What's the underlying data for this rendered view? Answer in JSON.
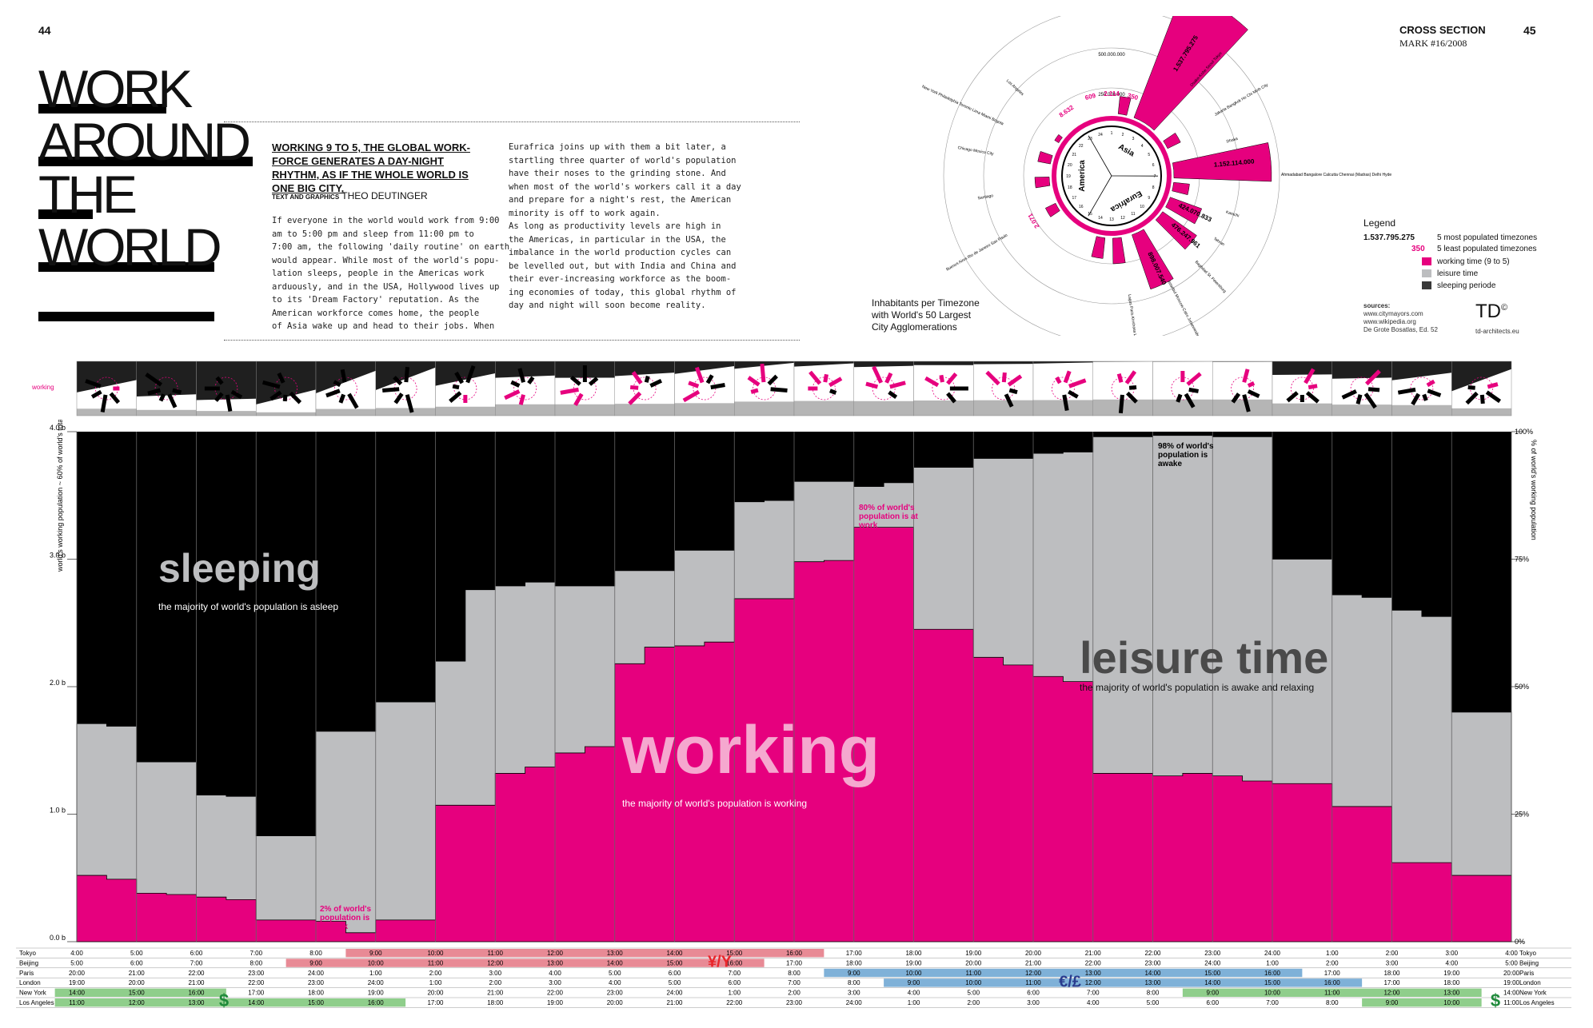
{
  "page": {
    "left_number": "44",
    "right_number": "45",
    "section": "CROSS SECTION",
    "issue": "MARK #16/2008"
  },
  "title": {
    "lines": [
      "WORK",
      "AROUND",
      "THE",
      "WORLD"
    ]
  },
  "lead": "WORKING 9 TO 5, THE GLOBAL WORK-FORCE GENERATES A DAY-NIGHT RHYTHM, AS IF THE WHOLE WORLD IS ONE BIG CITY.",
  "credit": {
    "label": "TEXT AND GRAPHICS",
    "author": "THEO DEUTINGER"
  },
  "body": {
    "col1": "If everyone in the world would work from 9:00\nam to 5:00 pm and sleep from 11:00 pm to\n7:00 am, the following 'daily routine' on earth\nwould appear. While most of the world's popu-\nlation sleeps, people in the Americas work\narduously, and in the USA, Hollywood lives up\nto its 'Dream Factory' reputation. As the\nAmerican workforce comes home, the people\nof Asia wake up and head to their jobs. When",
    "col2": "Eurafrica joins up with them a bit later, a\nstartling three quarter of world's population\nhave their noses to the grinding stone. And\nwhen most of the world's workers call it a day\nand prepare for a night's rest, the American\nminority is off to work again.\n   As long as productivity levels are high in\nthe Americas, in particular in the USA, the\nimbalance in the world production cycles can\nbe levelled out, but with India and China and\ntheir ever-increasing workforce as the boom-\ning economies of today, this global rhythm of\nday and night will soon become reality."
  },
  "radial": {
    "ring_labels": [
      "750.000.000",
      "500.000.000",
      "250.000.000"
    ],
    "regions": [
      "Asia",
      "America",
      "Eurafrica"
    ],
    "top_values": [
      "1.537.795.275",
      "1.152.114.000",
      "898.007.540",
      "476.247.961",
      "424.070.833"
    ],
    "low_values": [
      "8.632",
      "609",
      "2.114",
      "350",
      "2.071"
    ],
    "hour_ticks": [
      "1",
      "2",
      "3",
      "4",
      "5",
      "6",
      "7",
      "8",
      "9",
      "10",
      "11",
      "12",
      "13",
      "14",
      "15",
      "16",
      "17",
      "18",
      "19",
      "20",
      "21",
      "22",
      "23",
      "24"
    ],
    "city_groups": [
      "Beijing Chongqing Hong Kong Manila Shanghai Tianjin Wuhan",
      "Osaka-Kobe Seoul Tokyo",
      "Jakarta Bangkok Ho Chi Minh City",
      "Dhaka",
      "Ahmadabad Bangalore Calcutta Chennai (Madras) Delhi Hyderabad Lahore Mumbai (Bombay)",
      "Karachi",
      "Tehran",
      "Baghdad St. Petersburg",
      "Istanbul Moscow Cairo Johannesburg",
      "Lagos Paris Kinshasa London",
      "Buenos Aires Rio de Janeiro Sao Paulo",
      "Santiago",
      "Chicago Mexico City",
      "New York Philadelphia Toronto Lima Miami Bogota",
      "Los Angeles"
    ],
    "caption": [
      "Inhabitants per Timezone",
      "with World's 50 Largest",
      "City Agglomerations"
    ]
  },
  "legend": {
    "title": "Legend",
    "items": [
      {
        "key": "1.537.795.275",
        "label": "5 most populated timezones",
        "color": "#000000"
      },
      {
        "key": "350",
        "label": "5 least populated timezones",
        "color": "#e6007e"
      },
      {
        "key": "",
        "label": "working time (9 to 5)",
        "color": "#e6007e"
      },
      {
        "key": "",
        "label": "leisure time",
        "color": "#bdbec0"
      },
      {
        "key": "",
        "label": "sleeping periode",
        "color": "#3a3a3a"
      }
    ],
    "sources_label": "sources:",
    "sources": [
      "www.citymayors.com",
      "www.wikipedia.org",
      "De Grote Bosatlas, Ed. 52"
    ],
    "brand": "TD",
    "brand_mark": "©",
    "brand_site": "td-architects.eu"
  },
  "strip": {
    "label": "working"
  },
  "chart_data": {
    "type": "area",
    "x": [
      "4:00",
      "5:00",
      "6:00",
      "7:00",
      "8:00",
      "9:00",
      "10:00",
      "11:00",
      "12:00",
      "13:00",
      "14:00",
      "15:00",
      "16:00",
      "17:00",
      "18:00",
      "19:00",
      "20:00",
      "21:00",
      "22:00",
      "23:00",
      "24:00",
      "1:00",
      "2:00",
      "3:00",
      "4:00"
    ],
    "y_left_label": "world's working population ~ 60% of world's total population",
    "y_left_ticks": [
      "0.0 b",
      "1.0 b",
      "2.0 b",
      "3.0 b",
      "4.0 b"
    ],
    "y_right_label": "% of world's working population",
    "y_right_ticks": [
      "0%",
      "25%",
      "50%",
      "75%",
      "100%"
    ],
    "ylim": [
      0,
      4.0
    ],
    "working_steps": [
      [
        0.0,
        0.52
      ],
      [
        0.5,
        0.49
      ],
      [
        1.0,
        0.38
      ],
      [
        1.5,
        0.37
      ],
      [
        2.0,
        0.35
      ],
      [
        2.5,
        0.33
      ],
      [
        3.0,
        0.17
      ],
      [
        4.0,
        0.16
      ],
      [
        4.5,
        0.07
      ],
      [
        5.0,
        0.17
      ],
      [
        6.0,
        1.07
      ],
      [
        7.0,
        1.32
      ],
      [
        7.5,
        1.37
      ],
      [
        8.0,
        1.48
      ],
      [
        8.5,
        1.53
      ],
      [
        9.0,
        2.18
      ],
      [
        9.5,
        2.31
      ],
      [
        10.0,
        2.32
      ],
      [
        10.5,
        2.35
      ],
      [
        11.0,
        2.69
      ],
      [
        12.0,
        2.98
      ],
      [
        12.5,
        2.99
      ],
      [
        13.0,
        3.25
      ],
      [
        14.0,
        2.45
      ],
      [
        15.0,
        2.23
      ],
      [
        15.5,
        2.17
      ],
      [
        16.0,
        2.08
      ],
      [
        16.5,
        2.04
      ],
      [
        17.0,
        1.32
      ],
      [
        18.0,
        1.3
      ],
      [
        18.5,
        1.32
      ],
      [
        19.0,
        1.3
      ],
      [
        19.5,
        1.26
      ],
      [
        20.0,
        1.24
      ],
      [
        21.0,
        1.06
      ],
      [
        22.0,
        0.62
      ],
      [
        23.0,
        0.52
      ],
      [
        24.0,
        0.52
      ]
    ],
    "awake_steps": [
      [
        0.0,
        1.71
      ],
      [
        0.5,
        1.69
      ],
      [
        1.0,
        1.41
      ],
      [
        2.0,
        1.15
      ],
      [
        2.5,
        1.14
      ],
      [
        3.0,
        0.83
      ],
      [
        4.0,
        1.65
      ],
      [
        5.0,
        1.88
      ],
      [
        6.0,
        2.2
      ],
      [
        6.5,
        2.76
      ],
      [
        7.0,
        2.79
      ],
      [
        7.5,
        2.82
      ],
      [
        8.0,
        2.79
      ],
      [
        8.5,
        2.79
      ],
      [
        9.0,
        2.91
      ],
      [
        10.0,
        3.07
      ],
      [
        11.0,
        3.45
      ],
      [
        11.5,
        3.46
      ],
      [
        12.0,
        3.61
      ],
      [
        13.0,
        3.57
      ],
      [
        13.5,
        3.6
      ],
      [
        14.0,
        3.72
      ],
      [
        15.0,
        3.79
      ],
      [
        15.5,
        3.79
      ],
      [
        16.0,
        3.83
      ],
      [
        16.5,
        3.84
      ],
      [
        17.0,
        3.96
      ],
      [
        18.0,
        3.97
      ],
      [
        18.5,
        3.97
      ],
      [
        19.0,
        3.96
      ],
      [
        20.0,
        3.0
      ],
      [
        21.0,
        2.72
      ],
      [
        21.5,
        2.7
      ],
      [
        22.0,
        2.6
      ],
      [
        22.5,
        2.55
      ],
      [
        23.0,
        1.8
      ],
      [
        24.0,
        1.77
      ]
    ],
    "labels": {
      "sleeping": "sleeping",
      "sleeping_sub": "the majority of world's population is asleep",
      "working": "working",
      "working_sub": "the majority of world's population is working",
      "leisure": "leisure time",
      "leisure_sub": "the majority of world's population is awake and relaxing"
    },
    "annotations": {
      "at_work_2": "2% of world's population is at work",
      "at_work_80": "80% of world's population is at work",
      "awake_98": "98% of world's population is awake"
    },
    "colors": {
      "working": "#e6007e",
      "leisure": "#bdbec0",
      "sleeping": "#000000",
      "grid": "#666666"
    }
  },
  "timezones": {
    "rows": [
      {
        "name": "Tokyo",
        "start": 4,
        "work_color": "#e88a95",
        "work_start": 5,
        "work_end": 13
      },
      {
        "name": "Beijing",
        "start": 5,
        "work_color": "#e88a95",
        "work_start": 4,
        "work_end": 12
      },
      {
        "name": "Paris",
        "start": 20,
        "work_color": "#7fb1d8",
        "work_start": 13,
        "work_end": 21
      },
      {
        "name": "London",
        "start": 19,
        "work_color": "#7fb1d8",
        "work_start": 14,
        "work_end": 22
      },
      {
        "name": "New York",
        "start": 14,
        "work_color": "#8fce8b",
        "work_start": 19,
        "work_end": 27
      },
      {
        "name": "Los Angeles",
        "start": 11,
        "work_color": "#8fce8b",
        "work_start": 22,
        "work_end": 30
      }
    ],
    "currency": {
      "asia": "¥/Y",
      "europe": "€/£",
      "usa": "$"
    },
    "currency_colors": {
      "asia": "#e8262b",
      "europe": "#2a3c8e",
      "usa": "#1f8a3b"
    }
  }
}
